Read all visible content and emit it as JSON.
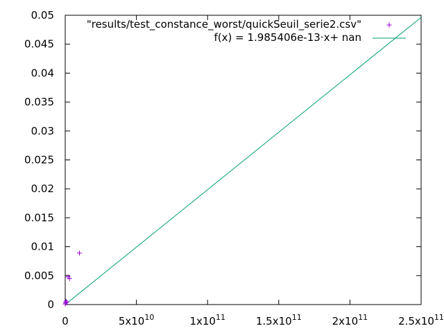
{
  "chart_data": {
    "type": "scatter",
    "title": "",
    "xlabel": "",
    "ylabel": "",
    "xlim": [
      0,
      250000000000
    ],
    "ylim": [
      0,
      0.05
    ],
    "grid": false,
    "legend_position": "top-right",
    "x_ticks": [
      {
        "value": 0,
        "label": "0",
        "exp": ""
      },
      {
        "value": 50000000000,
        "label": "5x10",
        "exp": "10"
      },
      {
        "value": 100000000000,
        "label": "1x10",
        "exp": "11"
      },
      {
        "value": 150000000000,
        "label": "1.5x10",
        "exp": "11"
      },
      {
        "value": 200000000000,
        "label": "2x10",
        "exp": "11"
      },
      {
        "value": 250000000000,
        "label": "2.5x10",
        "exp": "11"
      }
    ],
    "y_ticks": [
      {
        "value": 0,
        "label": "0"
      },
      {
        "value": 0.005,
        "label": "0.005"
      },
      {
        "value": 0.01,
        "label": "0.01"
      },
      {
        "value": 0.015,
        "label": "0.015"
      },
      {
        "value": 0.02,
        "label": "0.02"
      },
      {
        "value": 0.025,
        "label": "0.025"
      },
      {
        "value": 0.03,
        "label": "0.03"
      },
      {
        "value": 0.035,
        "label": "0.035"
      },
      {
        "value": 0.04,
        "label": "0.04"
      },
      {
        "value": 0.045,
        "label": "0.045"
      },
      {
        "value": 0.05,
        "label": "0.05"
      }
    ],
    "series": [
      {
        "name": "\"results/test_constance_worst/quickSeuil_serie2.csv\"",
        "kind": "points",
        "color": "#9400d3",
        "marker": "+",
        "x": [
          0,
          250000000,
          500000000,
          1000000000,
          2000000000,
          3000000000,
          10000000000
        ],
        "y": [
          0.0001,
          0.0003,
          0.0006,
          0.0004,
          0.0048,
          0.0045,
          0.0089
        ]
      },
      {
        "name": "f(x) = 1.985406e-13·x+ nan",
        "kind": "line",
        "color": "#009e73",
        "slope": 1.985406e-13,
        "x": [
          0,
          250000000000
        ],
        "y": [
          0,
          0.04963515
        ]
      }
    ]
  }
}
